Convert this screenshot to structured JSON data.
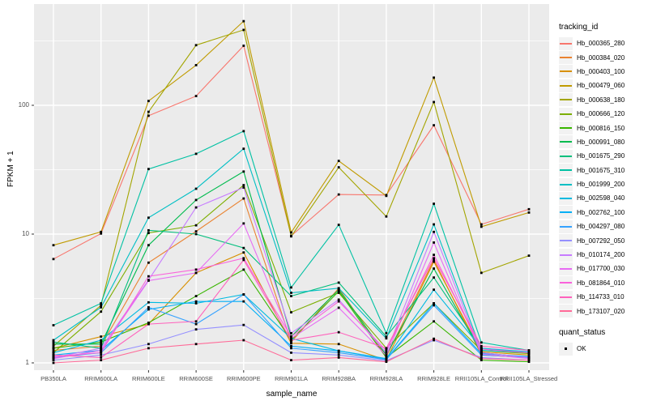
{
  "ui": {
    "y_axis_title": "FPKM + 1",
    "x_axis_title": "sample_name",
    "legend": {
      "color_title": "tracking_id",
      "shape_title": "quant_status",
      "shape_items": [
        {
          "label": "OK"
        }
      ]
    },
    "colors": {
      "panel_bg": "#EBEBEB",
      "grid": "#FFFFFF",
      "tick_text": "#4D4D4D",
      "point": "#000000",
      "legend_key_bg": "#F2F2F2"
    }
  },
  "chart_data": {
    "type": "line",
    "title": "",
    "xlabel": "sample_name",
    "ylabel": "FPKM + 1",
    "y_scale": "log10",
    "ylim": [
      1,
      610
    ],
    "y_breaks": [
      1,
      10,
      100
    ],
    "y_minor_breaks": [
      3.1623,
      31.623,
      316.23
    ],
    "grid": true,
    "legend_position": "right",
    "point_shape": "square",
    "x_categories": [
      "PB350LA",
      "RRIM600LA",
      "RRIM600LE",
      "RRIM600SE",
      "RRIM600PE",
      "RRIM901LA",
      "RRIM928BA",
      "RRIM928LA",
      "RRIM928LE",
      "RRII105LA_Control",
      "RRII105LA_Stressed"
    ],
    "series": [
      {
        "name": "Hb_000365_280",
        "color": "#F8766D",
        "values": [
          6.4,
          10.1,
          83,
          118,
          290,
          9.7,
          20.3,
          20.1,
          70,
          11.9,
          15.6
        ]
      },
      {
        "name": "Hb_000384_020",
        "color": "#EA8331",
        "values": [
          1.25,
          1.35,
          6.0,
          10.5,
          18.9,
          1.45,
          3.8,
          1.12,
          6.3,
          1.15,
          1.1
        ]
      },
      {
        "name": "Hb_000403_100",
        "color": "#D89000",
        "values": [
          1.3,
          1.6,
          2.0,
          5.0,
          7.2,
          1.42,
          1.4,
          1.05,
          6.1,
          1.22,
          1.15
        ]
      },
      {
        "name": "Hb_000479_060",
        "color": "#C09B00",
        "values": [
          8.2,
          10.4,
          108,
          205,
          450,
          10.3,
          37,
          19.8,
          164,
          11.4,
          14.7
        ]
      },
      {
        "name": "Hb_000638_180",
        "color": "#A3A500",
        "values": [
          1.35,
          2.8,
          89,
          293,
          385,
          9.6,
          33,
          13.7,
          106,
          5.0,
          6.8
        ]
      },
      {
        "name": "Hb_000666_120",
        "color": "#7CAE00",
        "values": [
          1.2,
          2.5,
          10.2,
          11.7,
          24,
          2.47,
          3.5,
          1.3,
          2.9,
          1.25,
          1.18
        ]
      },
      {
        "name": "Hb_000816_150",
        "color": "#39B600",
        "values": [
          1.3,
          1.45,
          2.05,
          3.3,
          5.3,
          1.5,
          3.6,
          1.1,
          2.1,
          1.05,
          1.02
        ]
      },
      {
        "name": "Hb_000991_080",
        "color": "#00BB4E",
        "values": [
          1.4,
          1.4,
          8.2,
          18.4,
          30.6,
          1.6,
          3.7,
          1.15,
          5.4,
          1.2,
          1.1
        ]
      },
      {
        "name": "Hb_001675_290",
        "color": "#00BF7D",
        "values": [
          1.45,
          1.3,
          10.7,
          10.0,
          7.8,
          3.3,
          4.2,
          1.6,
          4.6,
          1.3,
          1.2
        ]
      },
      {
        "name": "Hb_001675_310",
        "color": "#00C1A3",
        "values": [
          1.96,
          2.9,
          32,
          42,
          63,
          3.85,
          11.8,
          1.7,
          17.2,
          1.44,
          1.25
        ]
      },
      {
        "name": "Hb_001999_200",
        "color": "#00BFC4",
        "values": [
          1.5,
          2.7,
          13.4,
          22.5,
          46,
          3.5,
          3.8,
          1.55,
          11.9,
          1.25,
          1.2
        ]
      },
      {
        "name": "Hb_002598_040",
        "color": "#00BAE0",
        "values": [
          1.2,
          1.5,
          2.95,
          2.9,
          3.4,
          1.55,
          1.24,
          1.08,
          3.7,
          1.3,
          1.22
        ]
      },
      {
        "name": "Hb_002762_100",
        "color": "#00B0F6",
        "values": [
          1.15,
          1.25,
          2.6,
          3.0,
          3.0,
          1.35,
          1.24,
          1.07,
          2.9,
          1.18,
          1.12
        ]
      },
      {
        "name": "Hb_004297_080",
        "color": "#35A2FF",
        "values": [
          1.1,
          1.2,
          2.7,
          2.0,
          3.4,
          1.3,
          1.2,
          1.06,
          2.8,
          1.15,
          1.1
        ]
      },
      {
        "name": "Hb_007292_050",
        "color": "#9590FF",
        "values": [
          1.05,
          1.15,
          1.4,
          1.82,
          1.97,
          1.2,
          1.15,
          1.04,
          1.5,
          1.1,
          1.05
        ]
      },
      {
        "name": "Hb_010174_200",
        "color": "#C77CFF",
        "values": [
          1.1,
          1.3,
          4.4,
          16.1,
          23,
          1.7,
          3.1,
          1.2,
          10.4,
          1.2,
          1.1
        ]
      },
      {
        "name": "Hb_017700_030",
        "color": "#E76BF3",
        "values": [
          1.08,
          1.25,
          4.35,
          5.0,
          12.1,
          1.55,
          2.68,
          1.14,
          8.6,
          1.17,
          1.08
        ]
      },
      {
        "name": "Hb_081864_010",
        "color": "#FA62DB",
        "values": [
          1.12,
          1.2,
          4.7,
          5.3,
          6.5,
          1.6,
          3.0,
          1.25,
          6.9,
          1.28,
          1.2
        ]
      },
      {
        "name": "Hb_114733_010",
        "color": "#FF62BC",
        "values": [
          1.15,
          1.1,
          2.0,
          2.1,
          6.3,
          1.5,
          1.73,
          1.3,
          6.5,
          1.35,
          1.25
        ]
      },
      {
        "name": "Hb_173107_020",
        "color": "#FF6A98",
        "values": [
          1.0,
          1.05,
          1.3,
          1.4,
          1.5,
          1.05,
          1.1,
          1.02,
          1.54,
          1.08,
          1.05
        ]
      }
    ]
  }
}
